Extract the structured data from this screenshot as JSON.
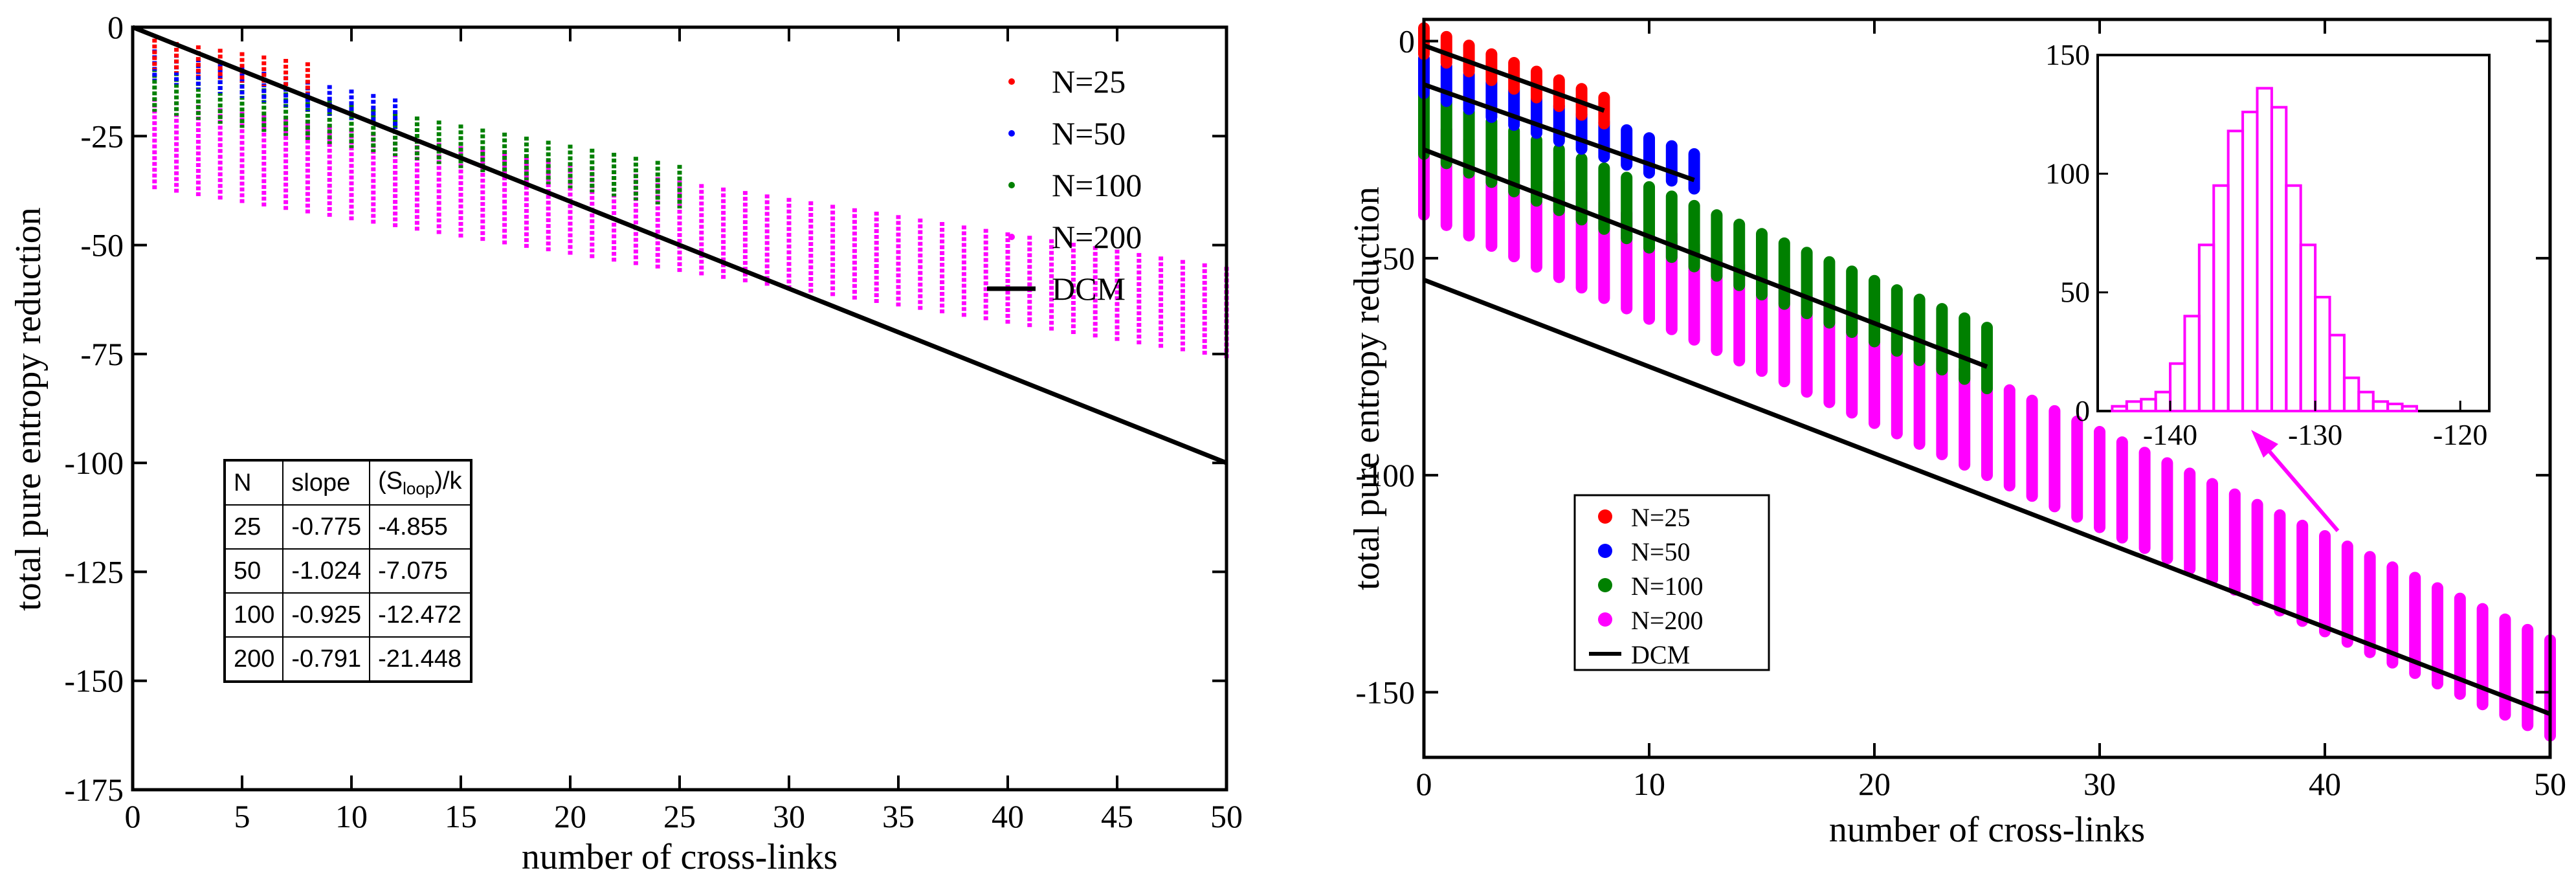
{
  "colors": {
    "N=25": "#ff0000",
    "N=50": "#0000ff",
    "N=100": "#008000",
    "N=200": "#ff00ff",
    "DCM": "#000000",
    "hist": "#ff00ff"
  },
  "table": {
    "headers": [
      "N",
      "slope",
      "(S",
      "loop",
      ")/k"
    ],
    "rows": [
      [
        "25",
        "-0.775",
        "-4.855"
      ],
      [
        "50",
        "-1.024",
        "-7.075"
      ],
      [
        "100",
        "-0.925",
        "-12.472"
      ],
      [
        "200",
        "-0.791",
        "-21.448"
      ]
    ]
  },
  "chart_data": [
    {
      "type": "scatter",
      "title": "",
      "xlabel": "number of cross-links",
      "ylabel": "total pure entropy reduction",
      "xlim": [
        0,
        50
      ],
      "ylim": [
        -175,
        0
      ],
      "xticks": [
        0,
        5,
        10,
        15,
        20,
        25,
        30,
        35,
        40,
        45,
        50
      ],
      "yticks": [
        0,
        -25,
        -50,
        -75,
        -100,
        -125,
        -150,
        -175
      ],
      "legend": [
        "N=25",
        "N=50",
        "N=100",
        "N=200",
        "DCM"
      ],
      "legend_position": "top-right",
      "series": [
        {
          "name": "N=25",
          "xmax": 8,
          "slope": -0.775,
          "intercept": -4.855,
          "spread": [
            -4,
            3
          ]
        },
        {
          "name": "N=50",
          "xmax": 12,
          "slope": -1.024,
          "intercept": -7.075,
          "spread": [
            -4,
            3
          ]
        },
        {
          "name": "N=100",
          "xmax": 25,
          "slope": -0.925,
          "intercept": -12.472,
          "spread": [
            -6,
            4
          ]
        },
        {
          "name": "N=200",
          "xmax": 50,
          "slope": -0.791,
          "intercept": -21.448,
          "spread": [
            -15,
            6
          ]
        }
      ],
      "dcm_line": {
        "name": "DCM",
        "x": [
          0,
          50
        ],
        "y": [
          0,
          -100
        ]
      }
    },
    {
      "type": "scatter",
      "title": "",
      "xlabel": "number of cross-links",
      "ylabel": "total pure entropy reduction",
      "xlim": [
        0,
        50
      ],
      "ylim": [
        -165,
        5
      ],
      "xticks": [
        0,
        10,
        20,
        30,
        40,
        50
      ],
      "yticks": [
        0,
        -50,
        -100,
        -150
      ],
      "legend": [
        "N=25",
        "N=50",
        "N=100",
        "N=200",
        "DCM"
      ],
      "legend_position": "center-left",
      "series": [
        {
          "name": "N=25",
          "xmax": 8,
          "center": [
            [
              0,
              0
            ],
            [
              8,
              -16
            ]
          ],
          "spread": [
            -3,
            3
          ]
        },
        {
          "name": "N=50",
          "xmax": 12,
          "center": [
            [
              0,
              -8
            ],
            [
              12,
              -30
            ]
          ],
          "spread": [
            -4,
            4
          ]
        },
        {
          "name": "N=100",
          "xmax": 25,
          "center": [
            [
              0,
              -18
            ],
            [
              25,
              -72
            ]
          ],
          "spread": [
            -8,
            6
          ]
        },
        {
          "name": "N=200",
          "xmax": 50,
          "center": [
            [
              0,
              -28
            ],
            [
              50,
              -148
            ]
          ],
          "spread": [
            -12,
            10
          ]
        }
      ],
      "fit_lines": [
        {
          "x": [
            0,
            8
          ],
          "y": [
            -1,
            -16
          ]
        },
        {
          "x": [
            0,
            12
          ],
          "y": [
            -10,
            -32
          ]
        },
        {
          "x": [
            0,
            25
          ],
          "y": [
            -25,
            -75
          ]
        },
        {
          "x": [
            0,
            50
          ],
          "y": [
            -55,
            -155
          ]
        }
      ],
      "inset": {
        "type": "histogram",
        "xlim": [
          -145,
          -118
        ],
        "ylim": [
          0,
          150
        ],
        "xticks": [
          -140,
          -130,
          -120
        ],
        "yticks": [
          0,
          50,
          100,
          150
        ],
        "bin_width": 1,
        "bins_start": -144,
        "counts": [
          2,
          4,
          5,
          8,
          20,
          40,
          70,
          95,
          118,
          126,
          136,
          128,
          95,
          70,
          48,
          32,
          14,
          8,
          4,
          3,
          2
        ]
      }
    }
  ]
}
